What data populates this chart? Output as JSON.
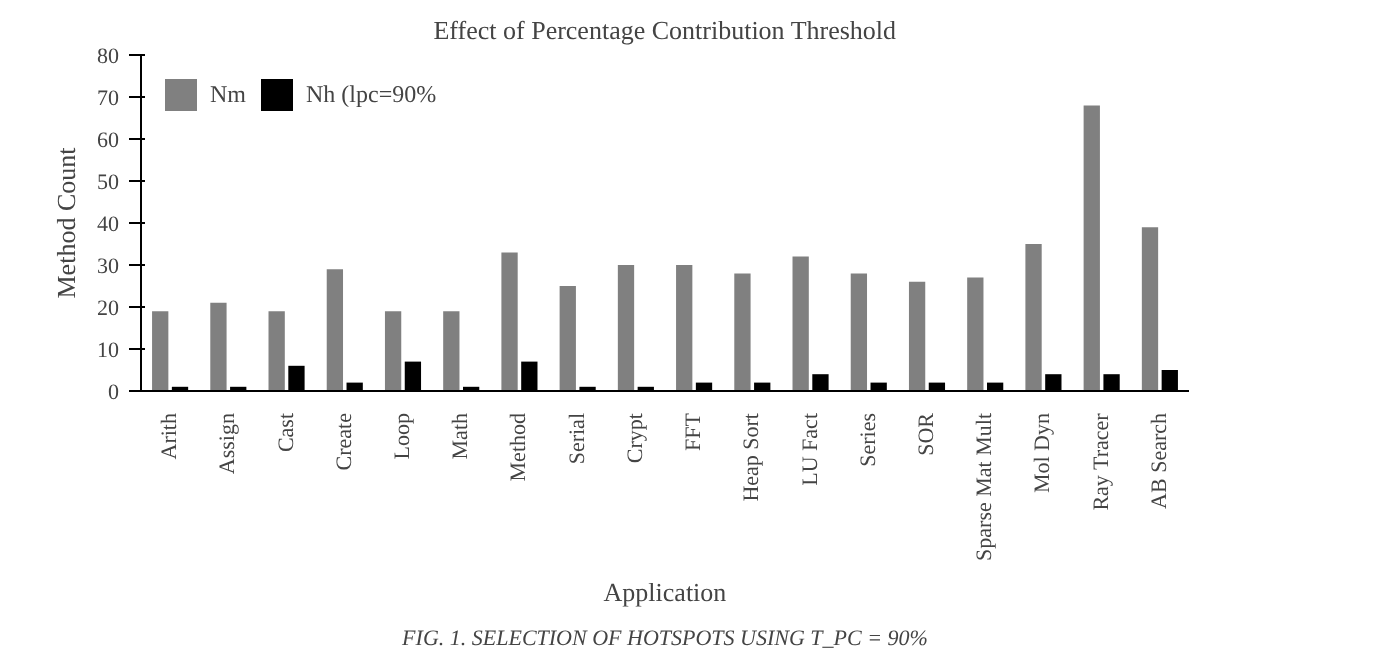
{
  "chart_data": {
    "type": "bar",
    "title": "Effect of Percentage Contribution Threshold",
    "xlabel": "Application",
    "ylabel": "Method Count",
    "categories": [
      "Arith",
      "Assign",
      "Cast",
      "Create",
      "Loop",
      "Math",
      "Method",
      "Serial",
      "Crypt",
      "FFT",
      "Heap Sort",
      "LU Fact",
      "Series",
      "SOR",
      "Sparse Mat Mult",
      "Mol Dyn",
      "Ray Tracer",
      "AB Search"
    ],
    "series": [
      {
        "name": "Nm",
        "color": "#808080",
        "values": [
          19,
          21,
          19,
          29,
          19,
          19,
          33,
          25,
          30,
          30,
          28,
          32,
          28,
          26,
          27,
          35,
          68,
          39
        ]
      },
      {
        "name": "Nh (lpc=90%",
        "color": "#000000",
        "values": [
          1,
          1,
          6,
          2,
          7,
          1,
          7,
          1,
          1,
          2,
          2,
          4,
          2,
          2,
          2,
          4,
          4,
          5
        ]
      }
    ],
    "ylim": [
      0,
      80
    ],
    "yticks": [
      0,
      10,
      20,
      30,
      40,
      50,
      60,
      70,
      80
    ],
    "grid": false,
    "legend": "top left",
    "annotations": [
      "FIG. 1. SELECTION OF HOTSPOTS USING T_PC = 90%"
    ]
  }
}
